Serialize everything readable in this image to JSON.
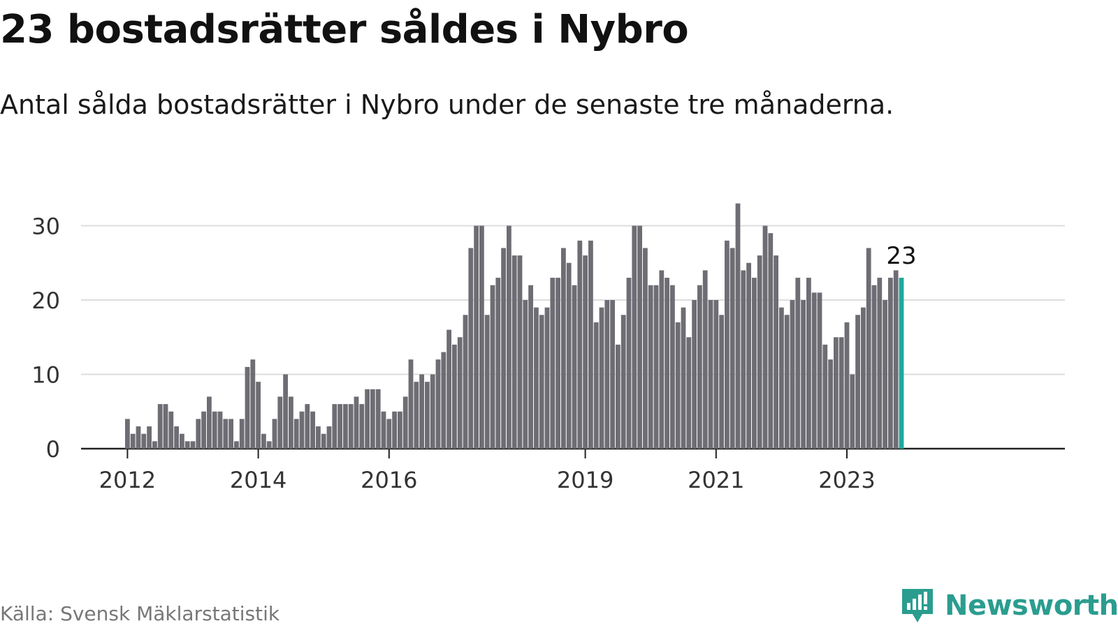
{
  "title": "23 bostadsrätter såldes i Nybro",
  "subtitle": "Antal sålda bostadsrätter i Nybro under de senaste tre månaderna.",
  "source": "Källa: Svensk Mäklarstatistik",
  "brand": "Newsworthy",
  "colors": {
    "bar": "#6e6d74",
    "highlight": "#1fa89a",
    "grid": "#dddddd",
    "axis": "#222222",
    "brand": "#2a9d8f"
  },
  "chart_data": {
    "type": "bar",
    "title": "23 bostadsrätter såldes i Nybro",
    "xlabel": "",
    "ylabel": "",
    "ylim": [
      0,
      33
    ],
    "yticks": [
      0,
      10,
      20,
      30
    ],
    "grid": true,
    "start": "2012-01",
    "x_tick_labels": [
      {
        "label": "2012",
        "index": 0
      },
      {
        "label": "2014",
        "index": 24
      },
      {
        "label": "2016",
        "index": 48
      },
      {
        "label": "2019",
        "index": 84
      },
      {
        "label": "2021",
        "index": 108
      },
      {
        "label": "2023",
        "index": 132
      }
    ],
    "values": [
      4,
      2,
      3,
      2,
      3,
      1,
      6,
      6,
      5,
      3,
      2,
      1,
      1,
      4,
      5,
      7,
      5,
      5,
      4,
      4,
      1,
      4,
      11,
      12,
      9,
      2,
      1,
      4,
      7,
      10,
      7,
      4,
      5,
      6,
      5,
      3,
      2,
      3,
      6,
      6,
      6,
      6,
      7,
      6,
      8,
      8,
      8,
      5,
      4,
      5,
      5,
      7,
      12,
      9,
      10,
      9,
      10,
      12,
      13,
      16,
      14,
      15,
      18,
      27,
      30,
      30,
      18,
      22,
      23,
      27,
      30,
      26,
      26,
      20,
      22,
      19,
      18,
      19,
      23,
      23,
      27,
      25,
      22,
      28,
      26,
      28,
      17,
      19,
      20,
      20,
      14,
      18,
      23,
      30,
      30,
      27,
      22,
      22,
      24,
      23,
      22,
      17,
      19,
      15,
      20,
      22,
      24,
      20,
      20,
      18,
      28,
      27,
      33,
      24,
      25,
      23,
      26,
      30,
      29,
      26,
      19,
      18,
      20,
      23,
      20,
      23,
      21,
      21,
      14,
      12,
      15,
      15,
      17,
      10,
      18,
      19,
      27,
      22,
      23,
      20,
      23,
      24,
      23
    ],
    "annotation": {
      "label": "23",
      "index": 142
    }
  }
}
